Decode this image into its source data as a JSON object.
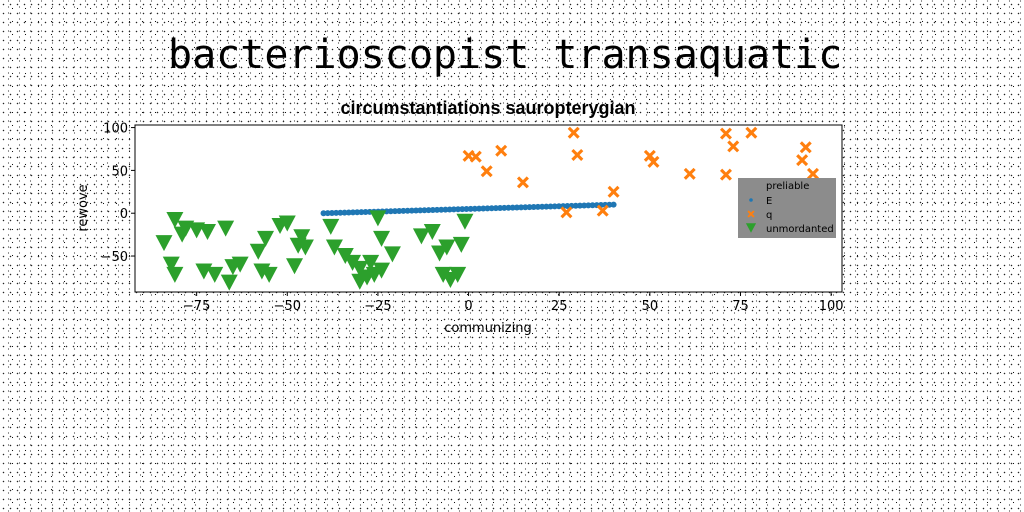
{
  "figure_title": "bacterioscopist transaquatic",
  "chart_data": {
    "type": "scatter",
    "title": "circumstantiations sauropterygian",
    "xlabel": "communizing",
    "ylabel": "rewove",
    "xlim": [
      -92,
      103
    ],
    "ylim": [
      -92,
      103
    ],
    "xticks": [
      -75,
      -50,
      -25,
      0,
      25,
      50,
      75,
      100
    ],
    "yticks": [
      -50,
      0,
      50,
      100
    ],
    "xtick_labels": [
      "−75",
      "−50",
      "−25",
      "0",
      "25",
      "50",
      "75",
      "100"
    ],
    "ytick_labels": [
      "−50",
      "0",
      "50",
      "100"
    ],
    "grid": false,
    "legend": {
      "placement": "right",
      "background": "#8c8c8c",
      "entries": [
        "preliable",
        "E",
        "q",
        "unmordanted"
      ]
    },
    "series": [
      {
        "name": "E",
        "marker": "circle",
        "color": "#1f77b4",
        "line_from": {
          "x": -40,
          "y": 0,
          "x_end": 40,
          "y_end": 10,
          "count": 70
        }
      },
      {
        "name": "q",
        "marker": "x",
        "color": "#ff7f0e",
        "points": [
          [
            0,
            67
          ],
          [
            2,
            66
          ],
          [
            5,
            49
          ],
          [
            9,
            73
          ],
          [
            15,
            36
          ],
          [
            27,
            1
          ],
          [
            29,
            94
          ],
          [
            30,
            68
          ],
          [
            37,
            3
          ],
          [
            40,
            25
          ],
          [
            50,
            67
          ],
          [
            51,
            60
          ],
          [
            61,
            46
          ],
          [
            71,
            93
          ],
          [
            71,
            45
          ],
          [
            73,
            78
          ],
          [
            78,
            94
          ],
          [
            92,
            62
          ],
          [
            93,
            77
          ],
          [
            95,
            46
          ]
        ]
      },
      {
        "name": "unmordanted",
        "marker": "triangle_down",
        "color": "#2ca02c",
        "points": [
          [
            -84,
            -35
          ],
          [
            -82,
            -60
          ],
          [
            -81,
            -72
          ],
          [
            -81,
            -8
          ],
          [
            -79,
            -25
          ],
          [
            -78,
            -18
          ],
          [
            -75,
            -20
          ],
          [
            -73,
            -68
          ],
          [
            -72,
            -22
          ],
          [
            -70,
            -72
          ],
          [
            -66,
            -81
          ],
          [
            -67,
            -18
          ],
          [
            -65,
            -63
          ],
          [
            -63,
            -60
          ],
          [
            -58,
            -45
          ],
          [
            -57,
            -68
          ],
          [
            -56,
            -30
          ],
          [
            -55,
            -72
          ],
          [
            -52,
            -15
          ],
          [
            -50,
            -12
          ],
          [
            -48,
            -62
          ],
          [
            -47,
            -38
          ],
          [
            -46,
            -28
          ],
          [
            -45,
            -40
          ],
          [
            -38,
            -16
          ],
          [
            -37,
            -40
          ],
          [
            -34,
            -50
          ],
          [
            -32,
            -58
          ],
          [
            -30,
            -65
          ],
          [
            -30,
            -80
          ],
          [
            -28,
            -75
          ],
          [
            -27,
            -58
          ],
          [
            -26,
            -72
          ],
          [
            -25,
            -6
          ],
          [
            -24,
            -67
          ],
          [
            -24,
            -30
          ],
          [
            -21,
            -48
          ],
          [
            -13,
            -27
          ],
          [
            -10,
            -22
          ],
          [
            -8,
            -47
          ],
          [
            -7,
            -72
          ],
          [
            -6,
            -40
          ],
          [
            -5,
            -78
          ],
          [
            -3,
            -72
          ],
          [
            -2,
            -37
          ],
          [
            -1,
            -10
          ]
        ]
      }
    ]
  }
}
